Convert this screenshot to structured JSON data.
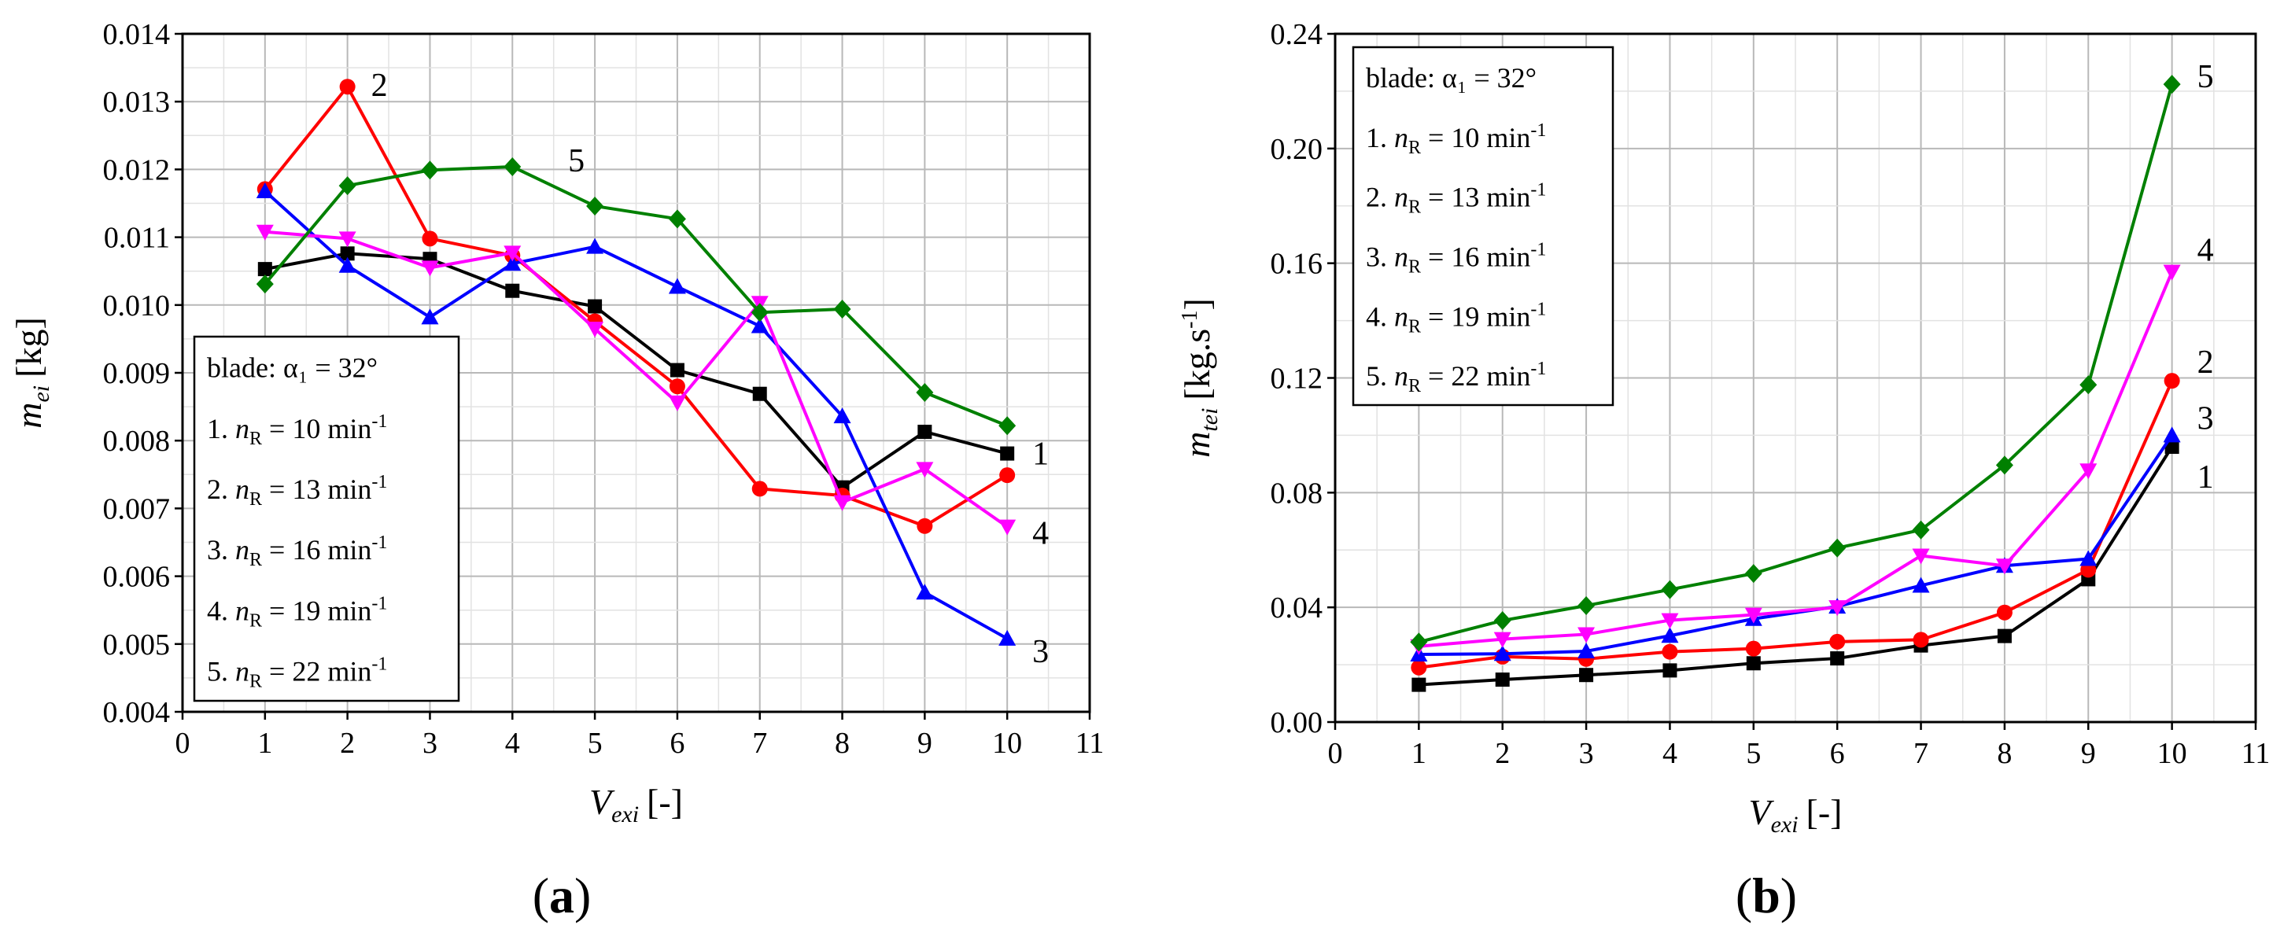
{
  "figure": {
    "panel_a_label": "a",
    "panel_b_label": "b"
  },
  "chart_data": [
    {
      "type": "line",
      "panel": "a",
      "x": [
        1,
        2,
        3,
        4,
        5,
        6,
        7,
        8,
        9,
        10
      ],
      "xlabel_var": "V",
      "xlabel_sub": "exi",
      "xlabel_unit": "[-]",
      "ylabel_var": "m",
      "ylabel_sub": "ei",
      "ylabel_unit": "[kg]",
      "xlim": [
        0,
        11
      ],
      "ylim": [
        0.004,
        0.014
      ],
      "xticks": [
        0,
        1,
        2,
        3,
        4,
        5,
        6,
        7,
        8,
        9,
        10,
        11
      ],
      "yticks": [
        "0.004",
        "0.005",
        "0.006",
        "0.007",
        "0.008",
        "0.009",
        "0.010",
        "0.011",
        "0.012",
        "0.013",
        "0.014"
      ],
      "grid": true,
      "legend": {
        "position": "bottom-left",
        "title": "blade: α₁ = 32°",
        "entries": [
          "1. nR = 10 min-1",
          "2. nR = 13 min-1",
          "3. nR = 16 min-1",
          "4. nR = 19 min-1",
          "5. nR = 22 min-1"
        ]
      },
      "series": [
        {
          "name": "1",
          "label": "1",
          "color": "#000000",
          "marker": "square",
          "values": [
            0.01053,
            0.01076,
            0.01068,
            0.01021,
            0.00998,
            0.00904,
            0.00869,
            0.00731,
            0.00813,
            0.00781
          ]
        },
        {
          "name": "2",
          "label": "2",
          "color": "#ff0000",
          "marker": "circle",
          "values": [
            0.01171,
            0.01322,
            0.01098,
            0.01073,
            0.00976,
            0.0088,
            0.00729,
            0.00719,
            0.00674,
            0.00749
          ]
        },
        {
          "name": "3",
          "label": "3",
          "color": "#0000ff",
          "marker": "triangle-up",
          "values": [
            0.01168,
            0.01058,
            0.00982,
            0.01061,
            0.01086,
            0.01027,
            0.00969,
            0.00836,
            0.00576,
            0.00508
          ]
        },
        {
          "name": "4",
          "label": "4",
          "color": "#ff00ff",
          "marker": "triangle-down",
          "values": [
            0.01108,
            0.01098,
            0.01055,
            0.01077,
            0.00965,
            0.00856,
            0.01003,
            0.00709,
            0.00758,
            0.00673
          ]
        },
        {
          "name": "5",
          "label": "5",
          "color": "#008000",
          "marker": "diamond",
          "values": [
            0.01031,
            0.01176,
            0.01199,
            0.01204,
            0.01146,
            0.01127,
            0.00989,
            0.00994,
            0.00871,
            0.00822
          ]
        }
      ]
    },
    {
      "type": "line",
      "panel": "b",
      "x": [
        1,
        2,
        3,
        4,
        5,
        6,
        7,
        8,
        9,
        10
      ],
      "xlabel_var": "V",
      "xlabel_sub": "exi",
      "xlabel_unit": "[-]",
      "ylabel_var": "m",
      "ylabel_sub": "tei",
      "ylabel_unit": "[kg.s",
      "ylabel_unit_sup": "-1",
      "ylabel_unit_end": "]",
      "xlim": [
        0,
        11
      ],
      "ylim": [
        0,
        0.24
      ],
      "xticks": [
        0,
        1,
        2,
        3,
        4,
        5,
        6,
        7,
        8,
        9,
        10,
        11
      ],
      "yticks": [
        "0.00",
        "0.04",
        "0.08",
        "0.12",
        "0.16",
        "0.20",
        "0.24"
      ],
      "grid": true,
      "legend": {
        "position": "top-left",
        "title": "blade: α₁ = 32°",
        "entries": [
          "1. nR = 10 min-1",
          "2. nR = 13 min-1",
          "3. nR = 16 min-1",
          "4. nR = 19 min-1",
          "5. nR = 22 min-1"
        ]
      },
      "series": [
        {
          "name": "1",
          "label": "1",
          "color": "#000000",
          "marker": "square",
          "values": [
            0.013,
            0.0148,
            0.0164,
            0.018,
            0.0205,
            0.0222,
            0.0267,
            0.03,
            0.0498,
            0.096
          ]
        },
        {
          "name": "2",
          "label": "2",
          "color": "#ff0000",
          "marker": "circle",
          "values": [
            0.019,
            0.0228,
            0.022,
            0.0245,
            0.0256,
            0.028,
            0.0287,
            0.0382,
            0.0531,
            0.119
          ]
        },
        {
          "name": "3",
          "label": "3",
          "color": "#0000ff",
          "marker": "triangle-up",
          "values": [
            0.0236,
            0.0238,
            0.0247,
            0.0301,
            0.036,
            0.0403,
            0.0476,
            0.0545,
            0.0569,
            0.1
          ]
        },
        {
          "name": "4",
          "label": "4",
          "color": "#ff00ff",
          "marker": "triangle-down",
          "values": [
            0.0264,
            0.0289,
            0.0306,
            0.0355,
            0.0374,
            0.04,
            0.058,
            0.0545,
            0.0877,
            0.157
          ]
        },
        {
          "name": "5",
          "label": "5",
          "color": "#008000",
          "marker": "diamond",
          "values": [
            0.0279,
            0.0354,
            0.0406,
            0.0462,
            0.0518,
            0.0607,
            0.067,
            0.0896,
            0.1176,
            0.2224
          ]
        }
      ]
    }
  ]
}
